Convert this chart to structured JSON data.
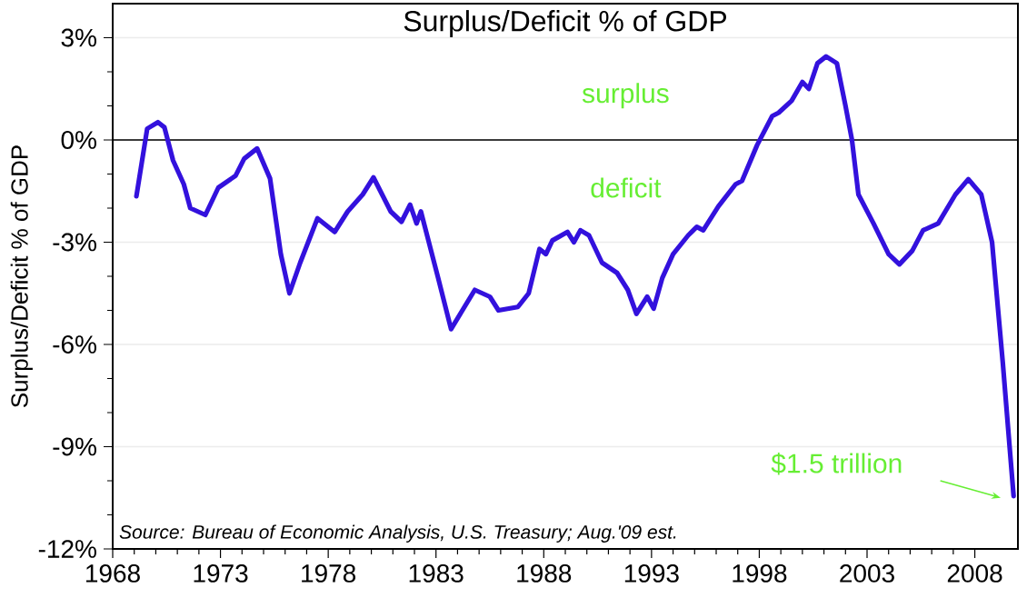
{
  "chart_data": {
    "type": "line",
    "title": "Surplus/Deficit % of GDP",
    "ylabel": "Surplus/Deficit % of GDP",
    "x": [
      1969.1,
      1969.6,
      1970.1,
      1970.4,
      1970.8,
      1971.3,
      1971.6,
      1972.3,
      1972.9,
      1973.7,
      1974.1,
      1974.7,
      1975.3,
      1975.8,
      1976.2,
      1976.7,
      1977.5,
      1978.3,
      1978.9,
      1979.6,
      1980.1,
      1980.9,
      1981.4,
      1981.8,
      1982.1,
      1982.3,
      1983.1,
      1983.7,
      1984.8,
      1985.5,
      1985.9,
      1986.8,
      1987.3,
      1987.8,
      1988.1,
      1988.4,
      1989.1,
      1989.4,
      1989.7,
      1990.1,
      1990.7,
      1991.4,
      1991.9,
      1992.3,
      1992.8,
      1993.1,
      1993.5,
      1994.0,
      1994.7,
      1995.1,
      1995.4,
      1996.1,
      1996.9,
      1997.2,
      1997.9,
      1998.6,
      1998.9,
      1999.5,
      2000.0,
      2000.3,
      2000.7,
      2001.1,
      2001.6,
      2002.0,
      2002.3,
      2002.6,
      2003.3,
      2004.0,
      2004.5,
      2005.1,
      2005.6,
      2006.3,
      2007.1,
      2007.7,
      2008.3,
      2008.8,
      2009.3,
      2009.8
    ],
    "series": [
      {
        "color": "#3311dd",
        "values": [
          -1.65,
          0.33,
          0.52,
          0.37,
          -0.6,
          -1.3,
          -2.0,
          -2.2,
          -1.4,
          -1.05,
          -0.55,
          -0.25,
          -1.13,
          -3.35,
          -4.5,
          -3.6,
          -2.3,
          -2.7,
          -2.1,
          -1.6,
          -1.1,
          -2.1,
          -2.4,
          -1.9,
          -2.45,
          -2.1,
          -4.05,
          -5.55,
          -4.4,
          -4.6,
          -5.0,
          -4.9,
          -4.5,
          -3.2,
          -3.35,
          -2.95,
          -2.7,
          -3.0,
          -2.65,
          -2.8,
          -3.6,
          -3.9,
          -4.4,
          -5.1,
          -4.6,
          -4.95,
          -4.05,
          -3.35,
          -2.8,
          -2.55,
          -2.65,
          -1.95,
          -1.3,
          -1.2,
          -0.15,
          0.7,
          0.8,
          1.15,
          1.7,
          1.5,
          2.25,
          2.45,
          2.25,
          1.0,
          0.0,
          -1.6,
          -2.45,
          -3.35,
          -3.65,
          -3.25,
          -2.65,
          -2.45,
          -1.6,
          -1.15,
          -1.6,
          -3.0,
          -6.55,
          -10.45
        ]
      }
    ],
    "xlim": [
      1968,
      2010
    ],
    "ylim": [
      -12,
      4
    ],
    "xticks": [
      1968,
      1973,
      1978,
      1983,
      1988,
      1993,
      1998,
      2003,
      2008
    ],
    "yticks": [
      {
        "value": -12,
        "label": "-12%"
      },
      {
        "value": -9,
        "label": "-9%"
      },
      {
        "value": -6,
        "label": "-6%"
      },
      {
        "value": -3,
        "label": "-3%"
      },
      {
        "value": 0,
        "label": "0%"
      },
      {
        "value": 3,
        "label": "3%"
      }
    ],
    "grid": "y",
    "line_style": "solid",
    "marker": "none",
    "ref_lines": [
      {
        "axis": "y",
        "value": 0,
        "color": "#000000"
      }
    ],
    "annotations": [
      "surplus",
      "deficit",
      "$1.5 trillion",
      "Source:  Bureau of Economic Analysis, U.S. Treasury; Aug.'09 est."
    ]
  }
}
